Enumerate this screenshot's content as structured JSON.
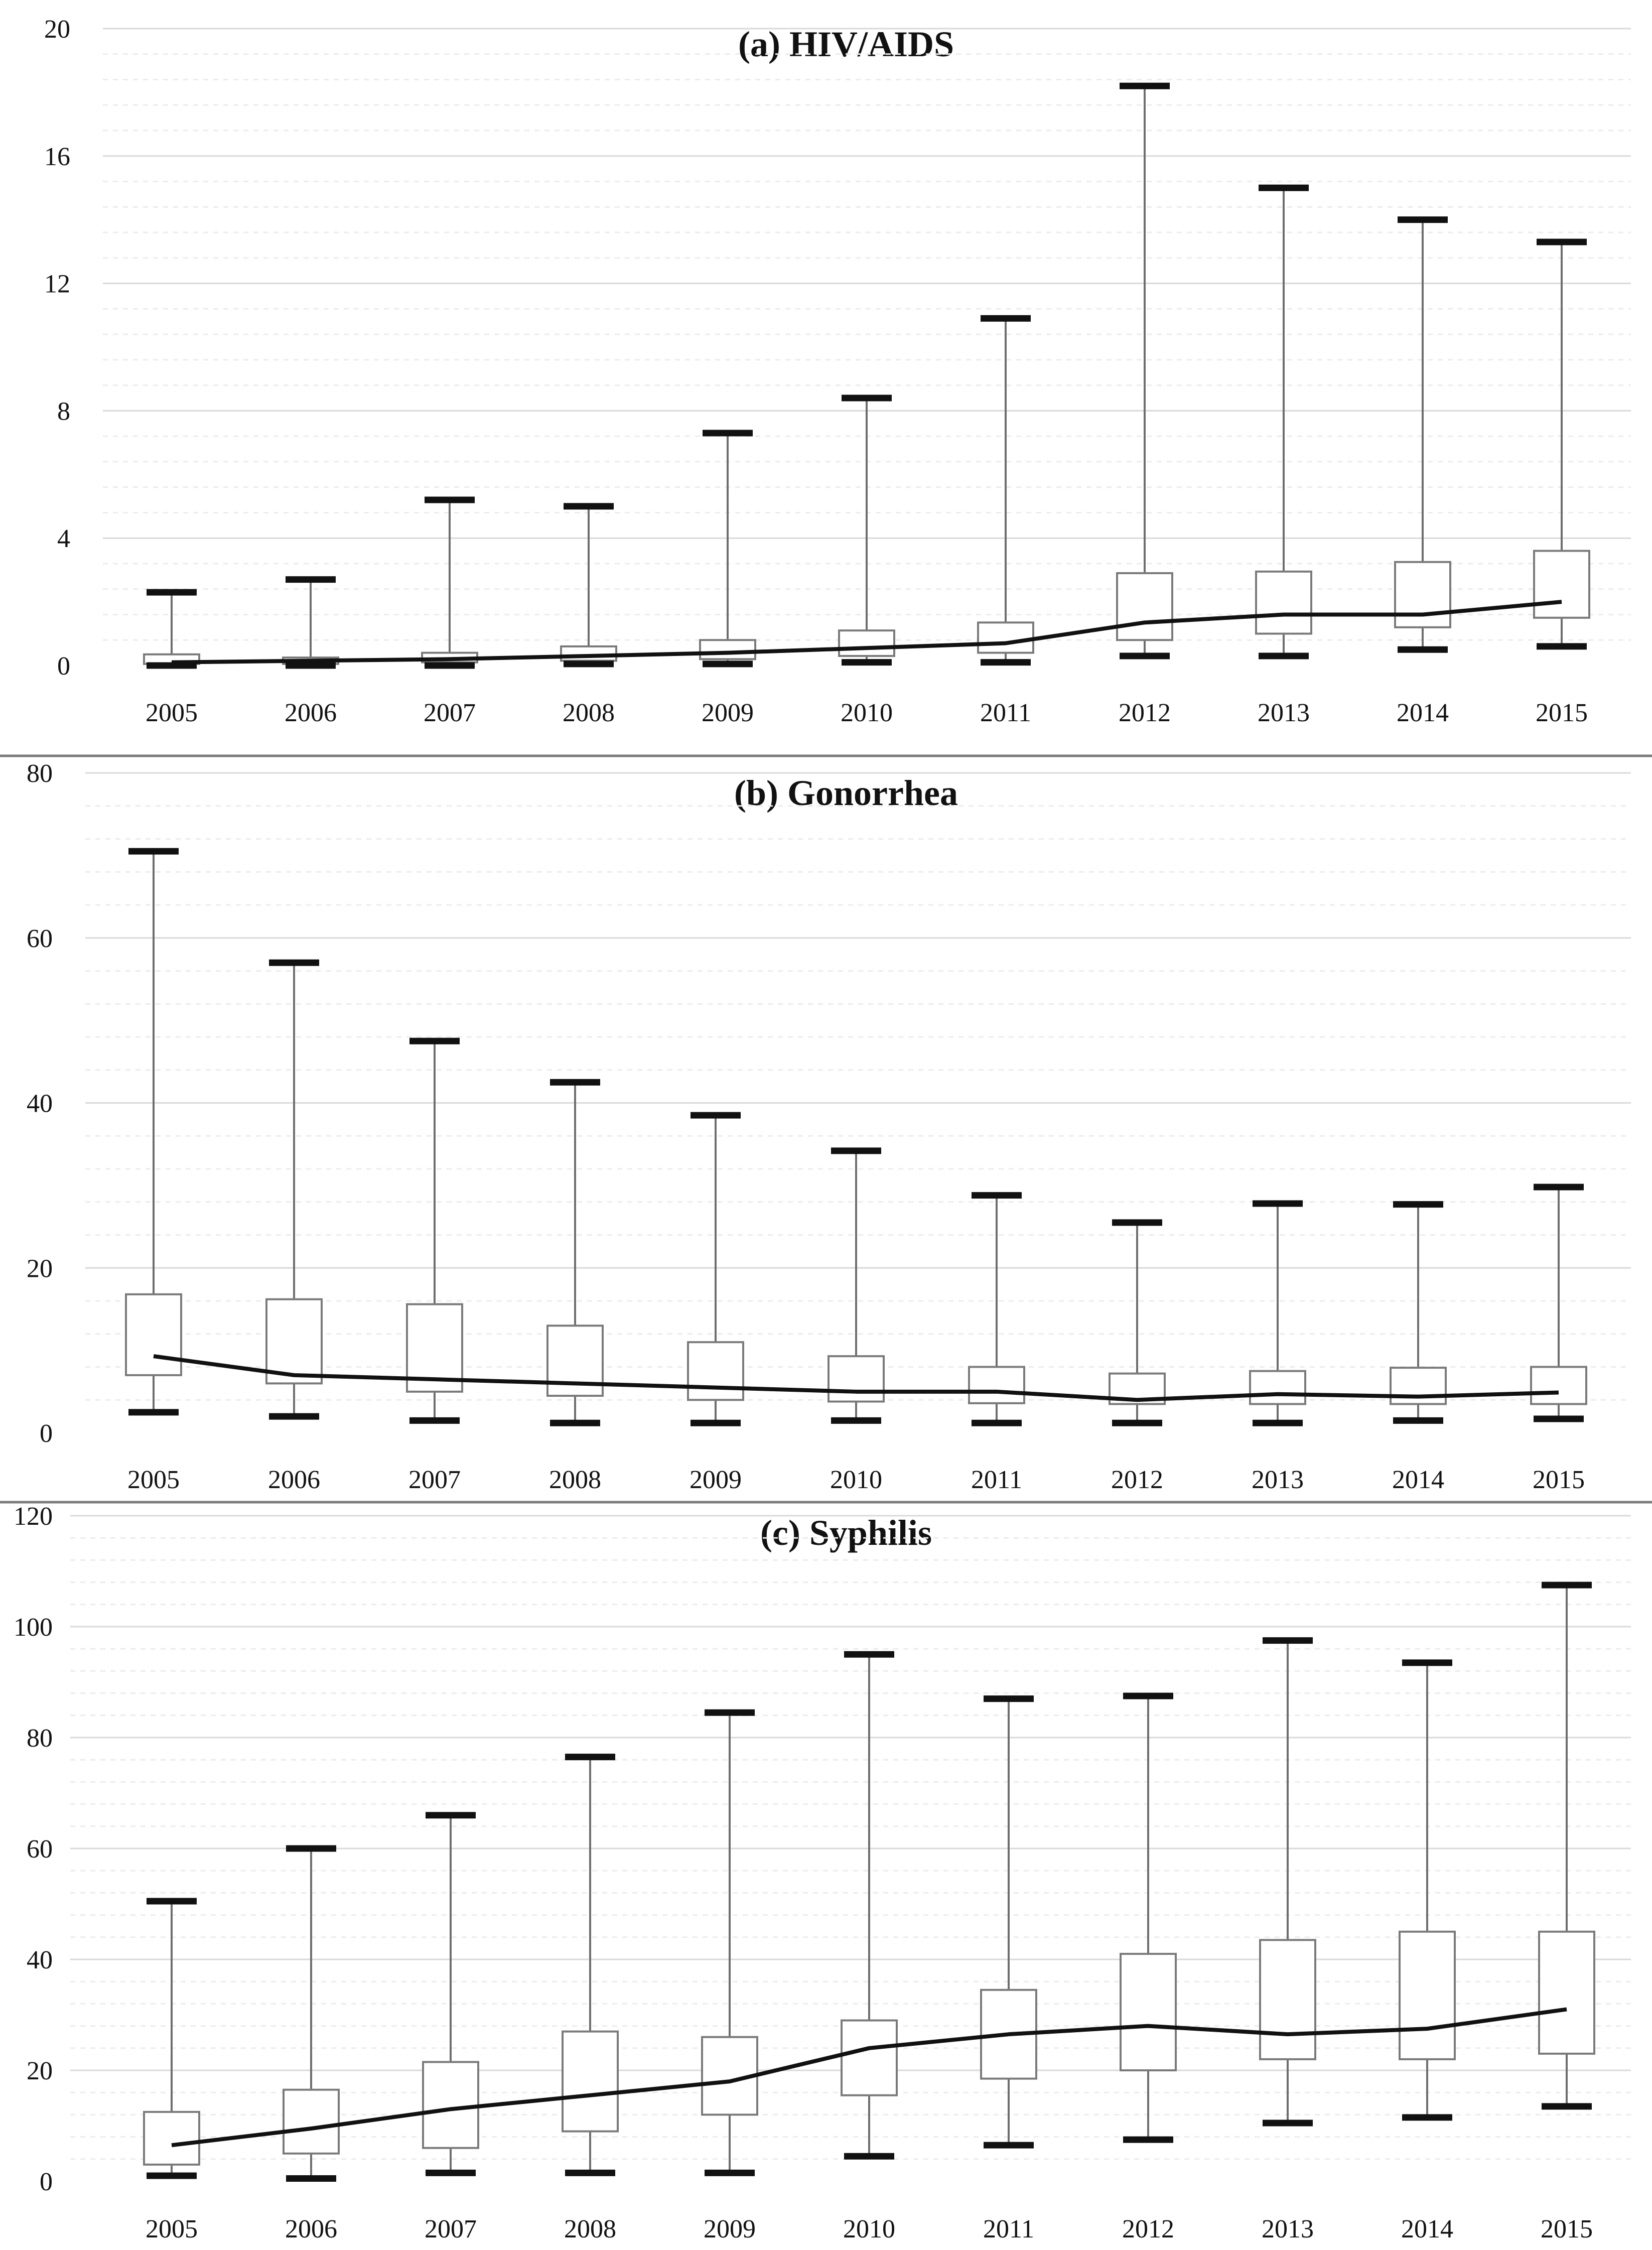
{
  "chart_data": [
    {
      "type": "box",
      "title": "(a) HIV/AIDS",
      "xlabel": "",
      "ylabel": "",
      "ylim": [
        0,
        20
      ],
      "yticks": [
        "0",
        "4",
        "8",
        "12",
        "16",
        "20"
      ],
      "categories": [
        "2005",
        "2006",
        "2007",
        "2008",
        "2009",
        "2010",
        "2011",
        "2012",
        "2013",
        "2014",
        "2015"
      ],
      "min": [
        0.0,
        0.0,
        0.0,
        0.05,
        0.05,
        0.1,
        0.1,
        0.3,
        0.3,
        0.5,
        0.6
      ],
      "q1": [
        0.05,
        0.05,
        0.1,
        0.15,
        0.2,
        0.3,
        0.4,
        0.8,
        1.0,
        1.2,
        1.5
      ],
      "median": [
        0.1,
        0.15,
        0.2,
        0.3,
        0.4,
        0.55,
        0.7,
        1.35,
        1.6,
        1.6,
        2.0
      ],
      "q3": [
        0.35,
        0.25,
        0.4,
        0.6,
        0.8,
        1.1,
        1.35,
        2.9,
        2.95,
        3.25,
        3.6
      ],
      "max": [
        2.3,
        2.7,
        5.2,
        5.0,
        7.3,
        8.4,
        10.9,
        18.2,
        15.0,
        14.0,
        13.3
      ],
      "grid": true
    },
    {
      "type": "box",
      "title": "(b) Gonorrhea",
      "xlabel": "",
      "ylabel": "",
      "ylim": [
        0,
        80
      ],
      "yticks": [
        "0",
        "20",
        "40",
        "60",
        "80"
      ],
      "categories": [
        "2005",
        "2006",
        "2007",
        "2008",
        "2009",
        "2010",
        "2011",
        "2012",
        "2013",
        "2014",
        "2015"
      ],
      "min": [
        2.5,
        2.0,
        1.5,
        1.2,
        1.2,
        1.5,
        1.2,
        1.2,
        1.2,
        1.5,
        1.7
      ],
      "q1": [
        7.0,
        6.0,
        5.0,
        4.5,
        4.0,
        3.8,
        3.6,
        3.5,
        3.5,
        3.5,
        3.5
      ],
      "median": [
        9.3,
        7.0,
        6.5,
        6.0,
        5.5,
        5.0,
        5.0,
        4.0,
        4.7,
        4.4,
        4.9
      ],
      "q3": [
        16.8,
        16.2,
        15.6,
        13.0,
        11.0,
        9.3,
        8.0,
        7.2,
        7.5,
        7.9,
        8.0
      ],
      "max": [
        70.5,
        57.0,
        47.5,
        42.5,
        38.5,
        34.2,
        28.8,
        25.5,
        27.8,
        27.7,
        29.8
      ],
      "grid": true
    },
    {
      "type": "box",
      "title": "(c) Syphilis",
      "xlabel": "",
      "ylabel": "",
      "ylim": [
        0,
        120
      ],
      "yticks": [
        "0",
        "20",
        "40",
        "60",
        "80",
        "100",
        "120"
      ],
      "categories": [
        "2005",
        "2006",
        "2007",
        "2008",
        "2009",
        "2010",
        "2011",
        "2012",
        "2013",
        "2014",
        "2015"
      ],
      "min": [
        1.0,
        0.5,
        1.5,
        1.5,
        1.5,
        4.5,
        6.5,
        7.5,
        10.5,
        11.5,
        13.5
      ],
      "q1": [
        3.0,
        5.0,
        6.0,
        9.0,
        12.0,
        15.5,
        18.5,
        20.0,
        22.0,
        22.0,
        23.0
      ],
      "median": [
        6.5,
        9.5,
        13.0,
        15.5,
        18.0,
        24.0,
        26.5,
        28.0,
        26.5,
        27.5,
        31.0
      ],
      "q3": [
        12.5,
        16.5,
        21.5,
        27.0,
        26.0,
        29.0,
        34.5,
        41.0,
        43.5,
        45.0,
        45.0
      ],
      "max": [
        50.5,
        60.0,
        66.0,
        76.5,
        84.5,
        95.0,
        87.0,
        87.5,
        97.5,
        93.5,
        107.5
      ],
      "grid": true
    }
  ]
}
